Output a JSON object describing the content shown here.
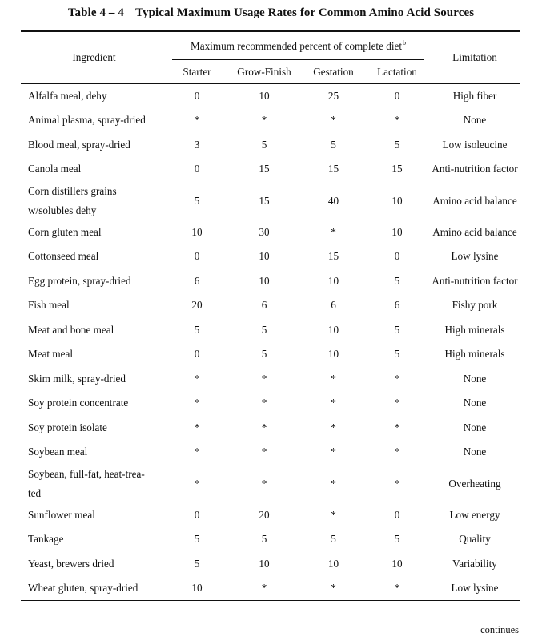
{
  "title": {
    "number": "Table 4 – 4",
    "text": "Typical Maximum Usage Rates for Common Amino Acid Sources"
  },
  "header": {
    "ingredient": "Ingredient",
    "group": "Maximum recommended percent of complete diet",
    "group_sup": "b",
    "starter": "Starter",
    "grow_finish": "Grow-Finish",
    "gestation": "Gestation",
    "lactation": "Lactation",
    "limitation": "Limitation"
  },
  "rows": [
    {
      "ingredient": "Alfalfa meal, dehy",
      "starter": "0",
      "grow_finish": "10",
      "gestation": "25",
      "lactation": "0",
      "limitation": "High fiber"
    },
    {
      "ingredient": "Animal plasma, spray-dried",
      "starter": "*",
      "grow_finish": "*",
      "gestation": "*",
      "lactation": "*",
      "limitation": "None"
    },
    {
      "ingredient": "Blood meal, spray-dried",
      "starter": "3",
      "grow_finish": "5",
      "gestation": "5",
      "lactation": "5",
      "limitation": "Low isoleucine"
    },
    {
      "ingredient": "Canola meal",
      "starter": "0",
      "grow_finish": "15",
      "gestation": "15",
      "lactation": "15",
      "limitation": "Anti-nutrition factor"
    },
    {
      "ingredient": "Corn distillers grains w/solubles dehy",
      "ingredient_l1": "Corn distillers grains",
      "ingredient_l2": "w/solubles dehy",
      "starter": "5",
      "grow_finish": "15",
      "gestation": "40",
      "lactation": "10",
      "limitation": "Amino acid balance"
    },
    {
      "ingredient": "Corn gluten meal",
      "starter": "10",
      "grow_finish": "30",
      "gestation": "*",
      "lactation": "10",
      "limitation": "Amino acid balance"
    },
    {
      "ingredient": "Cottonseed meal",
      "starter": "0",
      "grow_finish": "10",
      "gestation": "15",
      "lactation": "0",
      "limitation": "Low lysine"
    },
    {
      "ingredient": "Egg protein, spray-dried",
      "starter": "6",
      "grow_finish": "10",
      "gestation": "10",
      "lactation": "5",
      "limitation": "Anti-nutrition factor"
    },
    {
      "ingredient": "Fish meal",
      "starter": "20",
      "grow_finish": "6",
      "gestation": "6",
      "lactation": "6",
      "limitation": "Fishy pork"
    },
    {
      "ingredient": "Meat and bone meal",
      "starter": "5",
      "grow_finish": "5",
      "gestation": "10",
      "lactation": "5",
      "limitation": "High minerals"
    },
    {
      "ingredient": "Meat meal",
      "starter": "0",
      "grow_finish": "5",
      "gestation": "10",
      "lactation": "5",
      "limitation": "High minerals"
    },
    {
      "ingredient": "Skim milk, spray-dried",
      "starter": "*",
      "grow_finish": "*",
      "gestation": "*",
      "lactation": "*",
      "limitation": "None"
    },
    {
      "ingredient": "Soy protein concentrate",
      "starter": "*",
      "grow_finish": "*",
      "gestation": "*",
      "lactation": "*",
      "limitation": "None"
    },
    {
      "ingredient": "Soy protein isolate",
      "starter": "*",
      "grow_finish": "*",
      "gestation": "*",
      "lactation": "*",
      "limitation": "None"
    },
    {
      "ingredient": "Soybean meal",
      "starter": "*",
      "grow_finish": "*",
      "gestation": "*",
      "lactation": "*",
      "limitation": "None"
    },
    {
      "ingredient": "Soybean, full-fat, heat-treated",
      "ingredient_l1": "Soybean, full-fat, heat-trea-",
      "ingredient_l2": "ted",
      "starter": "*",
      "grow_finish": "*",
      "gestation": "*",
      "lactation": "*",
      "limitation": "Overheating"
    },
    {
      "ingredient": "Sunflower meal",
      "starter": "0",
      "grow_finish": "20",
      "gestation": "*",
      "lactation": "0",
      "limitation": "Low energy"
    },
    {
      "ingredient": "Tankage",
      "starter": "5",
      "grow_finish": "5",
      "gestation": "5",
      "lactation": "5",
      "limitation": "Quality"
    },
    {
      "ingredient": "Yeast, brewers dried",
      "starter": "5",
      "grow_finish": "10",
      "gestation": "10",
      "lactation": "10",
      "limitation": "Variability"
    },
    {
      "ingredient": "Wheat gluten, spray-dried",
      "starter": "10",
      "grow_finish": "*",
      "gestation": "*",
      "lactation": "*",
      "limitation": "Low lysine"
    }
  ],
  "footer": {
    "continues": "continues"
  }
}
